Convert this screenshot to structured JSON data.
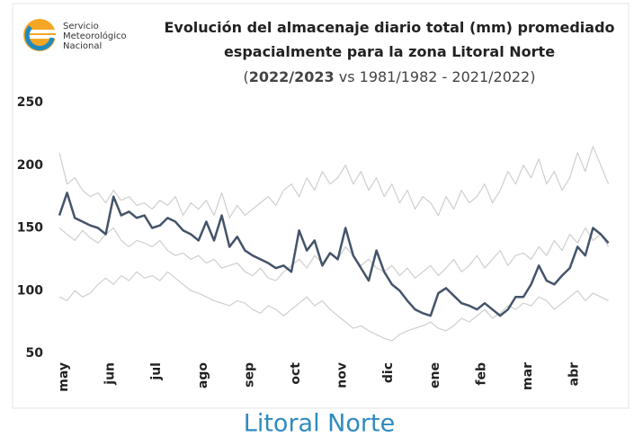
{
  "logo": {
    "lines": [
      "Servicio",
      "Meteorológico",
      "Nacional"
    ]
  },
  "chart_data": {
    "type": "line",
    "title_lines": [
      "Evolución del almacenaje diario total (mm) promediado",
      "espacialmente para la zona Litoral Norte"
    ],
    "subtitle_prefix": "(",
    "subtitle_bold": "2022/2023",
    "subtitle_rest": " vs 1981/1982 - 2021/2022)",
    "categories": [
      "may",
      null,
      null,
      null,
      null,
      null,
      "jun",
      null,
      null,
      null,
      null,
      null,
      "jul",
      null,
      null,
      null,
      null,
      null,
      "ago",
      null,
      null,
      null,
      null,
      null,
      "sep",
      null,
      null,
      null,
      null,
      null,
      "oct",
      null,
      null,
      null,
      null,
      null,
      "nov",
      null,
      null,
      null,
      null,
      null,
      "dic",
      null,
      null,
      null,
      null,
      null,
      "ene",
      null,
      null,
      null,
      null,
      null,
      "feb",
      null,
      null,
      null,
      null,
      null,
      "mar",
      null,
      null,
      null,
      null,
      null,
      "abr",
      null,
      null,
      null,
      null,
      null
    ],
    "series": [
      {
        "color": "#cfcfcf",
        "values": [
          210,
          185,
          190,
          180,
          175,
          178,
          170,
          180,
          172,
          175,
          168,
          170,
          165,
          172,
          168,
          175,
          160,
          170,
          165,
          172,
          160,
          178,
          158,
          168,
          160,
          165,
          170,
          175,
          168,
          180,
          185,
          175,
          190,
          180,
          195,
          185,
          190,
          200,
          185,
          195,
          180,
          190,
          175,
          185,
          170,
          180,
          165,
          175,
          170,
          160,
          175,
          165,
          180,
          170,
          175,
          185,
          170,
          180,
          195,
          185,
          200,
          190,
          205,
          185,
          195,
          180,
          190,
          210,
          195,
          215,
          200,
          185
        ]
      },
      {
        "color": "#cfcfcf",
        "values": [
          150,
          145,
          140,
          148,
          142,
          138,
          145,
          150,
          140,
          135,
          140,
          138,
          135,
          140,
          132,
          128,
          130,
          125,
          128,
          122,
          125,
          118,
          120,
          122,
          115,
          112,
          118,
          110,
          108,
          115,
          120,
          125,
          118,
          128,
          122,
          130,
          125,
          135,
          128,
          120,
          125,
          118,
          115,
          120,
          112,
          118,
          110,
          115,
          120,
          112,
          118,
          125,
          115,
          120,
          128,
          118,
          125,
          132,
          120,
          128,
          130,
          125,
          135,
          128,
          140,
          132,
          145,
          138,
          150,
          140,
          145,
          135
        ]
      },
      {
        "color": "#cfcfcf",
        "values": [
          95,
          92,
          100,
          95,
          98,
          105,
          110,
          105,
          112,
          108,
          115,
          110,
          112,
          108,
          115,
          110,
          105,
          100,
          98,
          95,
          92,
          90,
          88,
          92,
          90,
          85,
          82,
          88,
          85,
          80,
          85,
          90,
          95,
          88,
          92,
          85,
          80,
          75,
          70,
          72,
          68,
          65,
          62,
          60,
          65,
          68,
          70,
          72,
          75,
          70,
          68,
          72,
          78,
          75,
          80,
          85,
          78,
          82,
          88,
          85,
          90,
          88,
          95,
          92,
          85,
          90,
          95,
          100,
          92,
          98,
          95,
          92
        ]
      },
      {
        "name": "2022/2023",
        "color": "#44546a",
        "values": [
          160,
          178,
          158,
          155,
          152,
          150,
          145,
          175,
          160,
          163,
          158,
          160,
          150,
          152,
          158,
          155,
          148,
          145,
          140,
          155,
          140,
          160,
          135,
          143,
          132,
          128,
          125,
          122,
          118,
          120,
          115,
          148,
          132,
          140,
          120,
          130,
          125,
          150,
          128,
          118,
          108,
          132,
          115,
          105,
          100,
          92,
          85,
          82,
          80,
          98,
          102,
          96,
          90,
          88,
          85,
          90,
          85,
          80,
          85,
          95,
          95,
          105,
          120,
          108,
          105,
          112,
          118,
          135,
          128,
          150,
          145,
          138
        ]
      }
    ],
    "ylim": [
      50,
      250
    ],
    "yticks": [
      50,
      100,
      150,
      200,
      250
    ],
    "grid": false,
    "footer": "Litoral Norte"
  }
}
